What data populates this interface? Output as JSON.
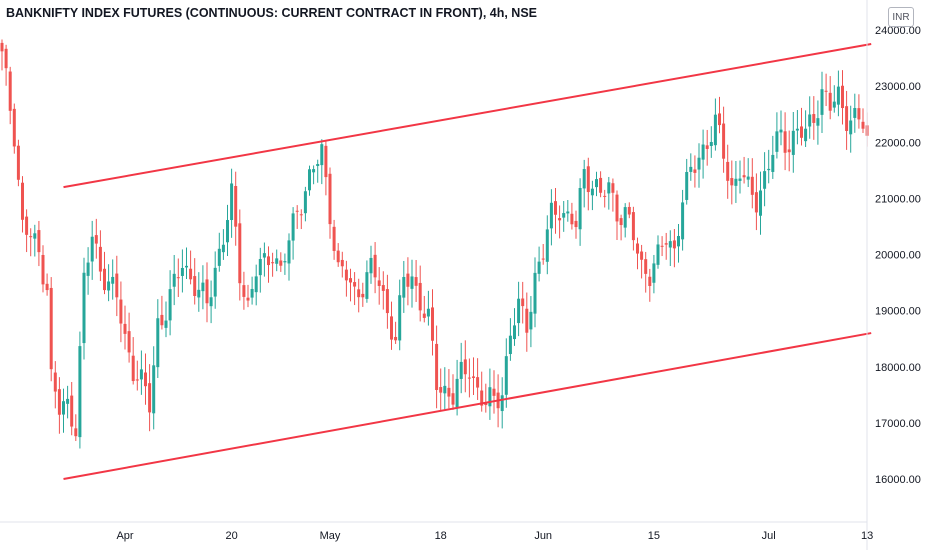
{
  "header": {
    "title": "BANKNIFTY INDEX FUTURES (CONTINUOUS: CURRENT CONTRACT IN FRONT), 4h, NSE",
    "currency": "INR"
  },
  "colors": {
    "up": "#26a69a",
    "down": "#ef5350",
    "trendline": "#f23645",
    "axis_text": "#131722"
  },
  "chart_data": {
    "type": "candlestick",
    "title": "BANKNIFTY INDEX FUTURES (CONTINUOUS: CURRENT CONTRACT IN FRONT), 4h, NSE",
    "ylim": [
      15200,
      24200
    ],
    "y_ticks": [
      "16000.00",
      "17000.00",
      "18000.00",
      "19000.00",
      "20000.00",
      "21000.00",
      "22000.00",
      "23000.00",
      "24000.00"
    ],
    "x_ticks": [
      "Apr",
      "20",
      "May",
      "18",
      "Jun",
      "15",
      "Jul",
      "13"
    ],
    "x_tick_bar_index": [
      30,
      56,
      80,
      107,
      132,
      159,
      187,
      211
    ],
    "bar_count": 212,
    "trendlines": [
      {
        "name": "upper-channel",
        "from": {
          "bar": 15,
          "price": 21200
        },
        "to": {
          "bar": 212,
          "price": 23750
        }
      },
      {
        "name": "lower-channel",
        "from": {
          "bar": 15,
          "price": 16000
        },
        "to": {
          "bar": 212,
          "price": 18600
        }
      }
    ],
    "anchors": [
      [
        0,
        23500
      ],
      [
        3,
        22200
      ],
      [
        5,
        20500
      ],
      [
        7,
        20300
      ],
      [
        9,
        20000
      ],
      [
        11,
        19500
      ],
      [
        12,
        17800
      ],
      [
        14,
        17200
      ],
      [
        16,
        17300
      ],
      [
        18,
        17000
      ],
      [
        20,
        19500
      ],
      [
        22,
        20300
      ],
      [
        24,
        19800
      ],
      [
        26,
        19500
      ],
      [
        28,
        19200
      ],
      [
        30,
        18500
      ],
      [
        32,
        18000
      ],
      [
        34,
        17700
      ],
      [
        36,
        17300
      ],
      [
        38,
        18800
      ],
      [
        40,
        19000
      ],
      [
        42,
        19400
      ],
      [
        44,
        19900
      ],
      [
        46,
        19600
      ],
      [
        48,
        19300
      ],
      [
        50,
        19100
      ],
      [
        52,
        19800
      ],
      [
        54,
        20300
      ],
      [
        56,
        21000
      ],
      [
        58,
        19700
      ],
      [
        60,
        19100
      ],
      [
        62,
        19700
      ],
      [
        64,
        19800
      ],
      [
        66,
        20100
      ],
      [
        68,
        19700
      ],
      [
        70,
        20200
      ],
      [
        72,
        20800
      ],
      [
        74,
        21200
      ],
      [
        76,
        21500
      ],
      [
        78,
        21800
      ],
      [
        80,
        20800
      ],
      [
        82,
        19700
      ],
      [
        84,
        19600
      ],
      [
        86,
        19300
      ],
      [
        88,
        19500
      ],
      [
        90,
        19700
      ],
      [
        92,
        19500
      ],
      [
        94,
        19000
      ],
      [
        96,
        18500
      ],
      [
        98,
        19500
      ],
      [
        100,
        19600
      ],
      [
        102,
        19200
      ],
      [
        104,
        18800
      ],
      [
        106,
        17700
      ],
      [
        108,
        17600
      ],
      [
        110,
        17500
      ],
      [
        112,
        17800
      ],
      [
        114,
        18000
      ],
      [
        116,
        17600
      ],
      [
        118,
        17300
      ],
      [
        120,
        17400
      ],
      [
        122,
        17600
      ],
      [
        124,
        18600
      ],
      [
        126,
        19000
      ],
      [
        128,
        18800
      ],
      [
        130,
        19600
      ],
      [
        132,
        20000
      ],
      [
        134,
        20700
      ],
      [
        136,
        20900
      ],
      [
        138,
        20600
      ],
      [
        140,
        20500
      ],
      [
        142,
        21500
      ],
      [
        144,
        21300
      ],
      [
        146,
        21000
      ],
      [
        148,
        21200
      ],
      [
        150,
        20800
      ],
      [
        152,
        20700
      ],
      [
        154,
        20300
      ],
      [
        156,
        19800
      ],
      [
        158,
        19700
      ],
      [
        160,
        19900
      ],
      [
        162,
        20300
      ],
      [
        164,
        20100
      ],
      [
        166,
        21000
      ],
      [
        168,
        21400
      ],
      [
        170,
        21800
      ],
      [
        172,
        22000
      ],
      [
        174,
        22300
      ],
      [
        176,
        21800
      ],
      [
        178,
        21200
      ],
      [
        180,
        21500
      ],
      [
        182,
        21100
      ],
      [
        184,
        21000
      ],
      [
        186,
        21400
      ],
      [
        188,
        21800
      ],
      [
        190,
        22100
      ],
      [
        192,
        22000
      ],
      [
        194,
        22200
      ],
      [
        196,
        22100
      ],
      [
        198,
        22500
      ],
      [
        200,
        22900
      ],
      [
        202,
        22600
      ],
      [
        204,
        22800
      ],
      [
        206,
        22500
      ],
      [
        208,
        22400
      ],
      [
        210,
        22300
      ],
      [
        211,
        22000
      ]
    ]
  }
}
